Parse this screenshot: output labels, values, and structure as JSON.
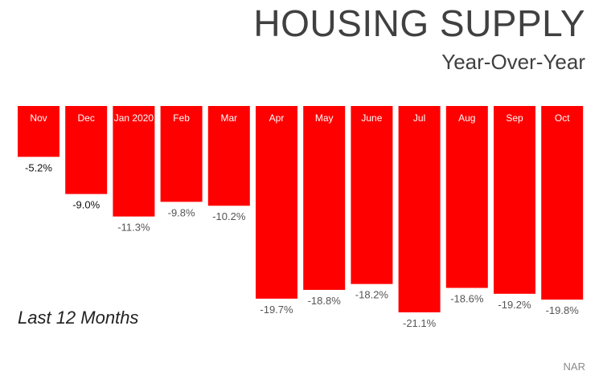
{
  "chart_data": {
    "type": "bar",
    "title": "HOUSING SUPPLY",
    "subtitle": "Year-Over-Year",
    "categories": [
      "Nov",
      "Dec",
      "Jan 2020",
      "Feb",
      "Mar",
      "Apr",
      "May",
      "June",
      "Jul",
      "Aug",
      "Sep",
      "Oct"
    ],
    "values": [
      -5.2,
      -9.0,
      -11.3,
      -9.8,
      -10.2,
      -19.7,
      -18.8,
      -18.2,
      -21.1,
      -18.6,
      -19.2,
      -19.8
    ],
    "value_labels": [
      "-5.2%",
      "-9.0%",
      "-11.3%",
      "-9.8%",
      "-10.2%",
      "-19.7%",
      "-18.8%",
      "-18.2%",
      "-21.1%",
      "-18.6%",
      "-19.2%",
      "-19.8%"
    ],
    "ylim": [
      -21.1,
      0
    ],
    "grid": false,
    "bar_color": "#ff0000"
  },
  "annotation": "Last 12 Months",
  "source": "NAR"
}
